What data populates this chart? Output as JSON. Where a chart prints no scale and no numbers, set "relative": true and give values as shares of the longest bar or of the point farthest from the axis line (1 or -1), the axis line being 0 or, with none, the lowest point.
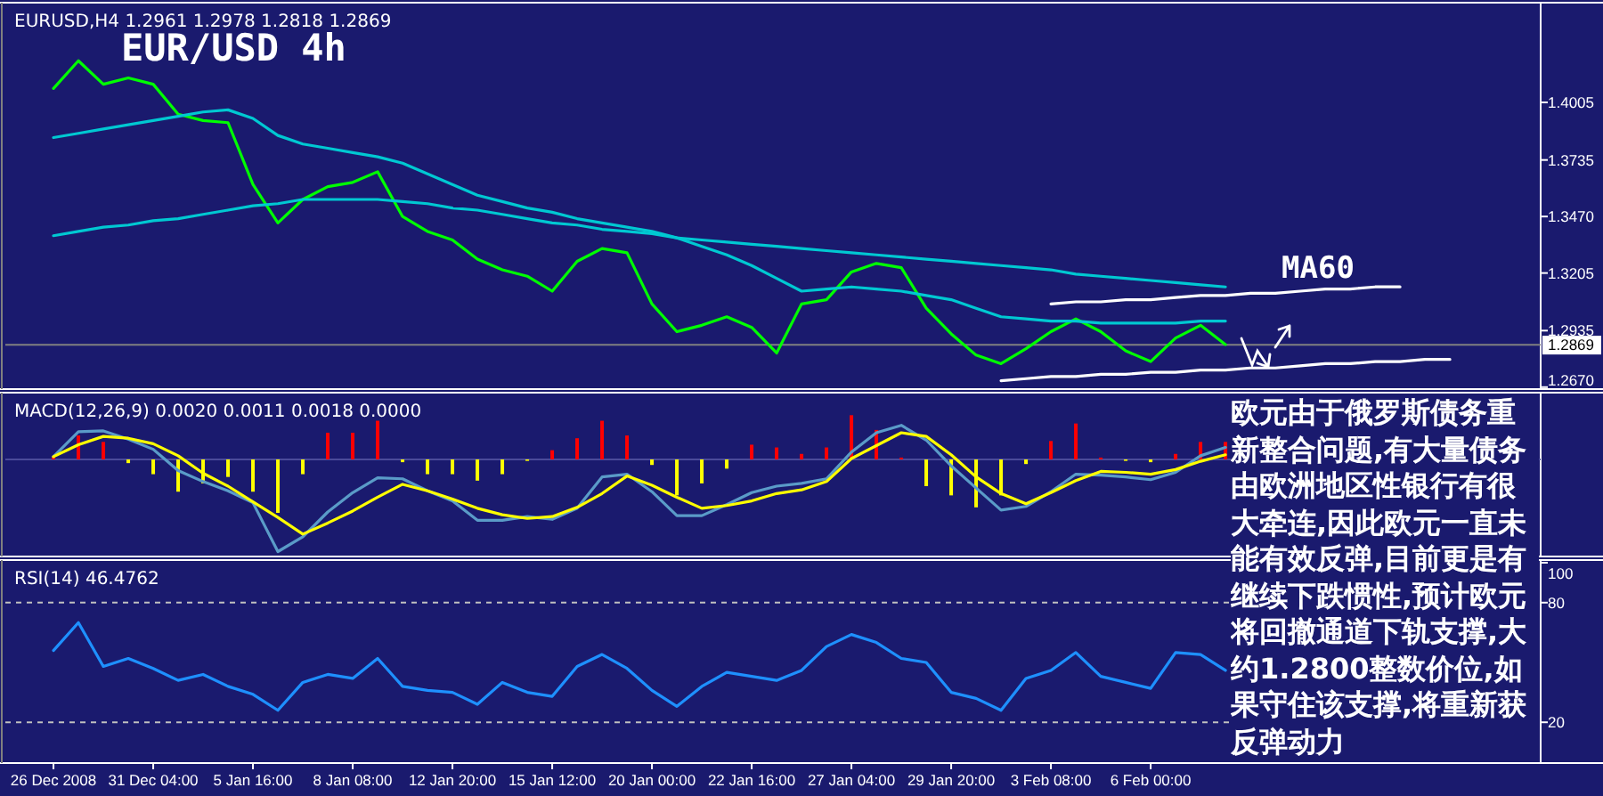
{
  "chart_data": [
    {
      "type": "line",
      "title": "EUR/USD 4h",
      "subtitle": "EURUSD,H4 1.2961 1.2978 1.2818 1.2869",
      "categories": [
        null,
        null,
        null,
        null,
        null,
        null,
        null,
        null,
        null,
        null,
        null,
        null,
        null,
        null,
        null,
        null,
        null,
        null,
        null,
        null,
        null,
        null,
        null,
        null,
        null,
        null,
        null,
        null,
        null,
        null,
        null,
        null,
        null,
        null,
        null,
        null,
        null,
        null,
        null,
        null,
        null,
        null,
        null,
        null,
        null,
        null,
        null,
        null,
        null,
        null,
        null,
        null,
        null,
        null,
        null,
        null,
        null,
        null,
        null,
        null
      ],
      "ylim": [
        1.2665,
        1.446
      ],
      "yticks": [
        1.4005,
        1.3735,
        {
          "value": 1.347,
          "label": "1.3470"
        },
        1.3205,
        1.2935,
        {
          "value": 1.267,
          "label": "1.2670"
        }
      ],
      "tick_labels": "y",
      "series": [
        {
          "color": "#00ff00",
          "values": [
            1.407,
            1.42,
            1.409,
            1.412,
            1.409,
            1.395,
            1.392,
            1.391,
            1.362,
            1.344,
            1.355,
            1.361,
            1.363,
            1.368,
            1.347,
            1.34,
            1.336,
            1.327,
            1.322,
            1.319,
            1.312,
            1.326,
            1.332,
            1.33,
            1.306,
            1.293,
            1.296,
            1.3,
            1.295,
            1.283,
            1.306,
            1.308,
            1.321,
            1.325,
            1.323,
            1.304,
            1.292,
            1.282,
            1.278,
            1.285,
            1.293,
            1.299,
            1.293,
            1.284,
            1.279,
            1.29,
            1.296,
            1.287,
            null,
            null,
            null,
            null,
            null,
            null,
            null,
            null,
            null,
            null,
            null,
            null
          ]
        },
        {
          "color": "#00c8d2",
          "values": [
            1.338,
            1.34,
            1.342,
            1.343,
            1.345,
            1.346,
            1.348,
            1.35,
            1.352,
            1.353,
            1.355,
            1.355,
            1.355,
            1.355,
            1.354,
            1.353,
            1.351,
            1.35,
            1.348,
            1.346,
            1.344,
            1.343,
            1.341,
            1.34,
            1.339,
            1.337,
            1.336,
            1.335,
            1.334,
            1.333,
            1.332,
            1.331,
            1.33,
            1.329,
            1.328,
            1.327,
            1.326,
            1.325,
            1.324,
            1.323,
            1.322,
            1.32,
            1.319,
            1.318,
            1.317,
            1.316,
            1.315,
            1.314,
            null,
            null,
            null,
            null,
            null,
            null,
            null,
            null,
            null,
            null,
            null,
            null
          ]
        },
        {
          "color": "#00c8d2",
          "values": [
            1.384,
            1.386,
            1.388,
            1.39,
            1.392,
            1.394,
            1.396,
            1.397,
            1.393,
            1.385,
            1.381,
            1.379,
            1.377,
            1.375,
            1.372,
            1.367,
            1.362,
            1.357,
            1.354,
            1.351,
            1.349,
            1.346,
            1.344,
            1.342,
            1.34,
            1.337,
            1.333,
            1.329,
            1.324,
            1.318,
            1.312,
            1.313,
            1.314,
            1.313,
            1.312,
            1.31,
            1.308,
            1.304,
            1.3,
            1.299,
            1.298,
            1.298,
            1.297,
            1.297,
            1.297,
            1.297,
            1.298,
            1.298,
            null,
            null,
            null,
            null,
            null,
            null,
            null,
            null,
            null,
            null,
            null,
            null
          ]
        },
        {
          "color": "#ffffff",
          "values": [
            null,
            null,
            null,
            null,
            null,
            null,
            null,
            null,
            null,
            null,
            null,
            null,
            null,
            null,
            null,
            null,
            null,
            null,
            null,
            null,
            null,
            null,
            null,
            null,
            null,
            null,
            null,
            null,
            null,
            null,
            null,
            null,
            null,
            null,
            null,
            null,
            null,
            null,
            null,
            null,
            1.306,
            1.307,
            1.307,
            1.308,
            1.308,
            1.309,
            1.31,
            1.31,
            1.311,
            1.311,
            1.312,
            1.313,
            1.313,
            1.314,
            1.314,
            null,
            null,
            null,
            null,
            null
          ]
        },
        {
          "color": "#ffffff",
          "values": [
            null,
            null,
            null,
            null,
            null,
            null,
            null,
            null,
            null,
            null,
            null,
            null,
            null,
            null,
            null,
            null,
            null,
            null,
            null,
            null,
            null,
            null,
            null,
            null,
            null,
            null,
            null,
            null,
            null,
            null,
            null,
            null,
            null,
            null,
            null,
            null,
            null,
            null,
            1.27,
            1.271,
            1.272,
            1.272,
            1.273,
            1.273,
            1.274,
            1.274,
            1.275,
            1.275,
            1.276,
            1.276,
            1.277,
            1.278,
            1.278,
            1.279,
            1.279,
            1.28,
            1.28,
            null,
            null,
            null
          ]
        }
      ],
      "ref_lines": [
        {
          "axis": "y",
          "value": 1.2869,
          "label": "1.2869",
          "color": "#808080"
        }
      ],
      "annotations": [
        "MA60",
        "欧元由于俄罗斯债务重新整合问题,有大量债务由欧洲地区性银行有很大牵连,因此欧元一直未能有效反弹,目前更是有继续下跌惯性,预计欧元将回撤通道下轨支撑,大约1.2800整数价位,如果守住该支撑,将重新获反弹动力"
      ]
    },
    {
      "type": "bar",
      "title": "MACD(12,26,9) 0.0020 0.0011 0.0018 0.0000",
      "relative": true,
      "tick_labels": false,
      "ref_lines": [
        {
          "axis": "y",
          "value": 0,
          "color": "#4a4a9a"
        }
      ],
      "categories": [
        null,
        null,
        null,
        null,
        null,
        null,
        null,
        null,
        null,
        null,
        null,
        null,
        null,
        null,
        null,
        null,
        null,
        null,
        null,
        null,
        null,
        null,
        null,
        null,
        null,
        null,
        null,
        null,
        null,
        null,
        null,
        null,
        null,
        null,
        null,
        null,
        null,
        null,
        null,
        null,
        null,
        null,
        null,
        null,
        null,
        null,
        null,
        null,
        null,
        null,
        null,
        null,
        null,
        null,
        null,
        null,
        null,
        null,
        null,
        null
      ],
      "series": [
        {
          "values": [
            0.03,
            0.26,
            0.19,
            -0.04,
            -0.16,
            -0.35,
            -0.26,
            -0.19,
            -0.35,
            -0.58,
            -0.16,
            0.29,
            0.29,
            0.42,
            -0.03,
            -0.16,
            -0.16,
            -0.23,
            -0.16,
            -0.01,
            0.1,
            0.23,
            0.42,
            0.26,
            -0.06,
            -0.39,
            -0.26,
            -0.1,
            0.16,
            0.13,
            0.06,
            0.13,
            0.48,
            0.32,
            0.02,
            -0.29,
            -0.39,
            -0.52,
            -0.39,
            -0.05,
            0.2,
            0.39,
            0.02,
            -0.01,
            -0.03,
            0.06,
            0.19,
            0.19,
            null,
            null,
            null,
            null,
            null,
            null,
            null,
            null,
            null,
            null,
            null,
            null
          ],
          "colors": [
            "#ff0000",
            "#ff0000",
            "#ff0000",
            "#ffff00",
            "#ffff00",
            "#ffff00",
            "#ffff00",
            "#ffff00",
            "#ffff00",
            "#ffff00",
            "#ffff00",
            "#ff0000",
            "#ff0000",
            "#ff0000",
            "#ffff00",
            "#ffff00",
            "#ffff00",
            "#ffff00",
            "#ffff00",
            "#ffff00",
            "#ff0000",
            "#ff0000",
            "#ff0000",
            "#ff0000",
            "#ffff00",
            "#ffff00",
            "#ffff00",
            "#ffff00",
            "#ff0000",
            "#ff0000",
            "#ff0000",
            "#ff0000",
            "#ff0000",
            "#ff0000",
            "#ff0000",
            "#ffff00",
            "#ffff00",
            "#ffff00",
            "#ffff00",
            "#ffff00",
            "#ff0000",
            "#ff0000",
            "#ff0000",
            "#ffff00",
            "#ffff00",
            "#ff0000",
            "#ff0000",
            "#ff0000",
            null,
            null,
            null,
            null,
            null,
            null,
            null,
            null,
            null,
            null,
            null,
            null
          ]
        },
        {
          "type": "line",
          "color": "#5a9bc8",
          "values": [
            0.03,
            0.3,
            0.31,
            0.22,
            0.11,
            -0.12,
            -0.24,
            -0.34,
            -0.47,
            -1,
            -0.84,
            -0.57,
            -0.36,
            -0.2,
            -0.21,
            -0.34,
            -0.45,
            -0.66,
            -0.66,
            -0.62,
            -0.65,
            -0.53,
            -0.19,
            -0.16,
            -0.35,
            -0.61,
            -0.61,
            -0.49,
            -0.36,
            -0.29,
            -0.26,
            -0.21,
            0.08,
            0.29,
            0.37,
            0.21,
            -0.07,
            -0.31,
            -0.55,
            -0.51,
            -0.35,
            -0.16,
            -0.17,
            -0.19,
            -0.22,
            -0.14,
            0.04,
            0.13,
            null,
            null,
            null,
            null,
            null,
            null,
            null,
            null,
            null,
            null,
            null,
            null
          ]
        },
        {
          "type": "line",
          "color": "#ffff00",
          "values": [
            0.03,
            0.16,
            0.25,
            0.23,
            0.17,
            0.04,
            -0.15,
            -0.29,
            -0.46,
            -0.63,
            -0.81,
            -0.69,
            -0.56,
            -0.41,
            -0.27,
            -0.34,
            -0.43,
            -0.53,
            -0.6,
            -0.64,
            -0.62,
            -0.52,
            -0.37,
            -0.18,
            -0.28,
            -0.41,
            -0.53,
            -0.5,
            -0.45,
            -0.37,
            -0.33,
            -0.24,
            0.01,
            0.15,
            0.29,
            0.25,
            0.05,
            -0.19,
            -0.37,
            -0.48,
            -0.36,
            -0.23,
            -0.13,
            -0.14,
            -0.16,
            -0.11,
            -0.02,
            0.05,
            null,
            null,
            null,
            null,
            null,
            null,
            null,
            null,
            null,
            null,
            null,
            null
          ]
        }
      ]
    },
    {
      "type": "line",
      "title": "RSI(14) 46.4762",
      "categories": [
        "26 Dec 2008",
        null,
        null,
        null,
        "31 Dec 04:00",
        null,
        null,
        null,
        "5 Jan 16:00",
        null,
        null,
        null,
        "8 Jan 08:00",
        null,
        null,
        null,
        "12 Jan 20:00",
        null,
        null,
        null,
        "15 Jan 12:00",
        null,
        null,
        null,
        "20 Jan 00:00",
        null,
        null,
        null,
        "22 Jan 16:00",
        null,
        null,
        null,
        "27 Jan 04:00",
        null,
        null,
        null,
        "29 Jan 20:00",
        null,
        null,
        null,
        "3 Feb 08:00",
        null,
        null,
        null,
        "6 Feb 00:00",
        null,
        null,
        null,
        null,
        null,
        null,
        null,
        null,
        null,
        null,
        null,
        null,
        null,
        null,
        null
      ],
      "ylim": [
        0,
        100
      ],
      "yticks": [
        100,
        80,
        20
      ],
      "ref_lines": [
        {
          "axis": "y",
          "value": 80,
          "color": "#c0c0c0",
          "line_style": "dashed"
        },
        {
          "axis": "y",
          "value": 20,
          "color": "#c0c0c0",
          "line_style": "dashed"
        }
      ],
      "series": [
        {
          "color": "#1e90ff",
          "values": [
            56,
            70,
            48,
            52,
            47,
            41,
            44,
            38,
            34,
            26,
            40,
            44,
            42,
            52,
            38,
            36,
            35,
            29,
            40,
            35,
            33,
            48,
            54,
            47,
            36,
            28,
            38,
            45,
            43,
            41,
            46,
            58,
            64,
            60,
            52,
            50,
            35,
            32,
            26,
            42,
            46,
            55,
            43,
            40,
            37,
            55,
            54,
            46,
            null,
            null,
            null,
            null,
            null,
            null,
            null,
            null,
            null,
            null,
            null,
            null
          ]
        }
      ]
    }
  ]
}
